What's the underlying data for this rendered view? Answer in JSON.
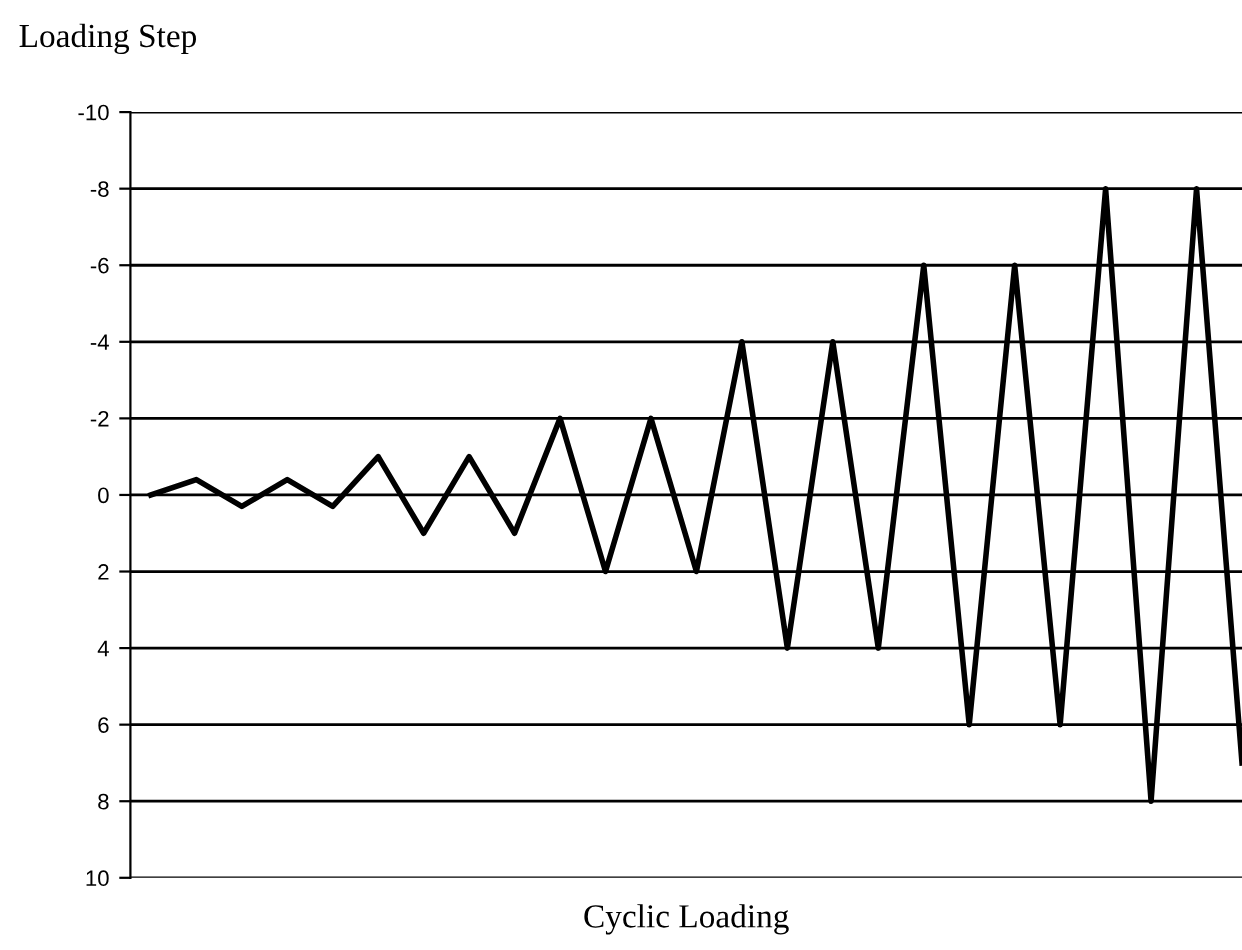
{
  "chart_data": {
    "type": "line",
    "title": "Loading Step",
    "xlabel": "Cyclic Loading",
    "categories": [
      null,
      null,
      null,
      null,
      null,
      null,
      null,
      null,
      null,
      null,
      null,
      null,
      null,
      null,
      null,
      null,
      null,
      null,
      null,
      null,
      null,
      null,
      null,
      null,
      null
    ],
    "series": [
      {
        "color": "#000000",
        "values": [
          0,
          -0.4,
          0.3,
          -0.4,
          0.3,
          -1,
          1,
          -1,
          1,
          -2,
          2,
          -2,
          2,
          -4,
          4,
          -4,
          4,
          -6,
          6,
          -6,
          6,
          -8,
          8,
          -8,
          7
        ]
      }
    ],
    "ylim": [
      10,
      -10
    ],
    "yticks": [
      -10,
      -8,
      -6,
      -4,
      -2,
      0,
      2,
      4,
      6,
      8,
      10
    ],
    "grid": "y",
    "marker": "none",
    "line_style": "solid"
  }
}
